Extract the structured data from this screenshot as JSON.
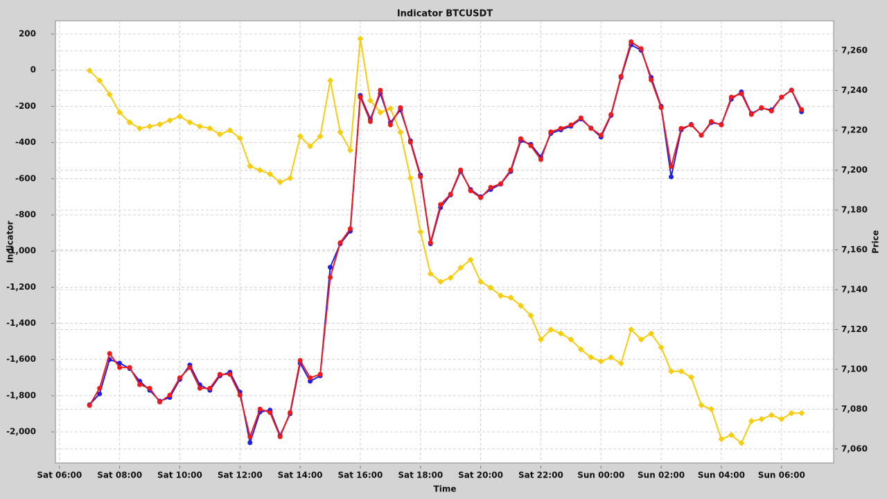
{
  "chart_data": {
    "type": "line",
    "title": "Indicator BTCUSDT",
    "x_label": "Time",
    "y_label": "Indicator",
    "y2_label": "Price",
    "x": [
      "Sat 07:00",
      "Sat 07:20",
      "Sat 07:40",
      "Sat 08:00",
      "Sat 08:20",
      "Sat 08:40",
      "Sat 09:00",
      "Sat 09:20",
      "Sat 09:40",
      "Sat 10:00",
      "Sat 10:20",
      "Sat 10:40",
      "Sat 11:00",
      "Sat 11:20",
      "Sat 11:40",
      "Sat 12:00",
      "Sat 12:20",
      "Sat 12:40",
      "Sat 13:00",
      "Sat 13:20",
      "Sat 13:40",
      "Sat 14:00",
      "Sat 14:20",
      "Sat 14:40",
      "Sat 15:00",
      "Sat 15:20",
      "Sat 15:40",
      "Sat 16:00",
      "Sat 16:20",
      "Sat 16:40",
      "Sat 17:00",
      "Sat 17:20",
      "Sat 17:40",
      "Sat 18:00",
      "Sat 18:20",
      "Sat 18:40",
      "Sat 19:00",
      "Sat 19:20",
      "Sat 19:40",
      "Sat 20:00",
      "Sat 20:20",
      "Sat 20:40",
      "Sat 21:00",
      "Sat 21:20",
      "Sat 21:40",
      "Sat 22:00",
      "Sat 22:20",
      "Sat 22:40",
      "Sat 23:00",
      "Sat 23:20",
      "Sat 23:40",
      "Sun 00:00",
      "Sun 00:20",
      "Sun 00:40",
      "Sun 01:00",
      "Sun 01:20",
      "Sun 01:40",
      "Sun 02:00",
      "Sun 02:20",
      "Sun 02:40",
      "Sun 03:00",
      "Sun 03:20",
      "Sun 03:40",
      "Sun 04:00",
      "Sun 04:20",
      "Sun 04:40",
      "Sun 05:00",
      "Sun 05:20",
      "Sun 05:40",
      "Sun 06:00",
      "Sun 06:20",
      "Sun 06:40"
    ],
    "series": [
      {
        "color": "#1f1fe6",
        "marker": "circle",
        "axis": "y",
        "values": [
          -1850,
          -1790,
          -1600,
          -1620,
          -1650,
          -1720,
          -1770,
          -1830,
          -1810,
          -1710,
          -1630,
          -1740,
          -1770,
          -1690,
          -1670,
          -1780,
          -2060,
          -1890,
          -1880,
          -2020,
          -1900,
          -1620,
          -1720,
          -1690,
          -1090,
          -960,
          -890,
          -140,
          -270,
          -130,
          -290,
          -220,
          -390,
          -580,
          -960,
          -760,
          -690,
          -560,
          -660,
          -700,
          -660,
          -630,
          -560,
          -390,
          -410,
          -480,
          -350,
          -330,
          -310,
          -270,
          -320,
          -370,
          -250,
          -40,
          140,
          110,
          -40,
          -200,
          -590,
          -330,
          -300,
          -360,
          -290,
          -300,
          -160,
          -120,
          -240,
          -210,
          -220,
          -150,
          -110,
          -230
        ]
      },
      {
        "color": "#f01818",
        "marker": "circle",
        "axis": "y",
        "values": [
          -1854,
          -1759,
          -1567,
          -1644,
          -1644,
          -1739,
          -1759,
          -1835,
          -1797,
          -1701,
          -1644,
          -1759,
          -1759,
          -1682,
          -1682,
          -1797,
          -2027,
          -1874,
          -1893,
          -2027,
          -1893,
          -1605,
          -1701,
          -1682,
          -1146,
          -954,
          -877,
          -149,
          -284,
          -111,
          -303,
          -207,
          -398,
          -590,
          -954,
          -743,
          -686,
          -552,
          -667,
          -705,
          -648,
          -628,
          -552,
          -379,
          -418,
          -494,
          -341,
          -322,
          -303,
          -264,
          -322,
          -360,
          -245,
          -34,
          157,
          119,
          -54,
          -207,
          -533,
          -322,
          -303,
          -360,
          -284,
          -303,
          -149,
          -130,
          -245,
          -207,
          -226,
          -149,
          -111,
          -218
        ]
      },
      {
        "color": "#f7cc0c",
        "marker": "diamond",
        "axis": "y2",
        "values": [
          7250,
          7245,
          7238,
          7229,
          7224,
          7221,
          7222,
          7223,
          7225,
          7227,
          7224,
          7222,
          7221,
          7218,
          7220,
          7216,
          7202,
          7200,
          7198,
          7194,
          7196,
          7217,
          7212,
          7217,
          7245,
          7219,
          7210,
          7266,
          7235,
          7229,
          7231,
          7219,
          7196,
          7169,
          7148,
          7144,
          7146,
          7151,
          7155,
          7144,
          7141,
          7137,
          7136,
          7132,
          7127,
          7115,
          7120,
          7118,
          7115,
          7110,
          7106,
          7104,
          7106,
          7103,
          7120,
          7115,
          7118,
          7111,
          7099,
          7099,
          7096,
          7082,
          7080,
          7065,
          7067,
          7063,
          7074,
          7075,
          7077,
          7075,
          7078,
          7078
        ]
      }
    ],
    "xlim": [
      "Sat 05:52",
      "Sun 07:44"
    ],
    "xticks": [
      "Sat 06:00",
      "Sat 08:00",
      "Sat 10:00",
      "Sat 12:00",
      "Sat 14:00",
      "Sat 16:00",
      "Sat 18:00",
      "Sat 20:00",
      "Sat 22:00",
      "Sun 00:00",
      "Sun 02:00",
      "Sun 04:00",
      "Sun 06:00"
    ],
    "ylim": [
      -2172,
      273
    ],
    "yticks": [
      {
        "value": -2000,
        "label": "-2,000"
      },
      {
        "value": -1800,
        "label": "-1,800"
      },
      {
        "value": -1600,
        "label": "-1,600"
      },
      {
        "value": -1400,
        "label": "-1,400"
      },
      {
        "value": -1200,
        "label": "-1,200"
      },
      {
        "value": -1000,
        "label": "-1,000"
      },
      -800,
      -600,
      -400,
      -200,
      0,
      200
    ],
    "y2lim": [
      7053,
      7275
    ],
    "y2ticks": [
      {
        "value": 7060,
        "label": "7,060"
      },
      {
        "value": 7080,
        "label": "7,080"
      },
      {
        "value": 7100,
        "label": "7,100"
      },
      {
        "value": 7120,
        "label": "7,120"
      },
      {
        "value": 7140,
        "label": "7,140"
      },
      {
        "value": 7160,
        "label": "7,160"
      },
      {
        "value": 7180,
        "label": "7,180"
      },
      {
        "value": 7200,
        "label": "7,200"
      },
      {
        "value": 7220,
        "label": "7,220"
      },
      {
        "value": 7240,
        "label": "7,240"
      },
      {
        "value": 7260,
        "label": "7,260"
      }
    ],
    "grid": true
  }
}
